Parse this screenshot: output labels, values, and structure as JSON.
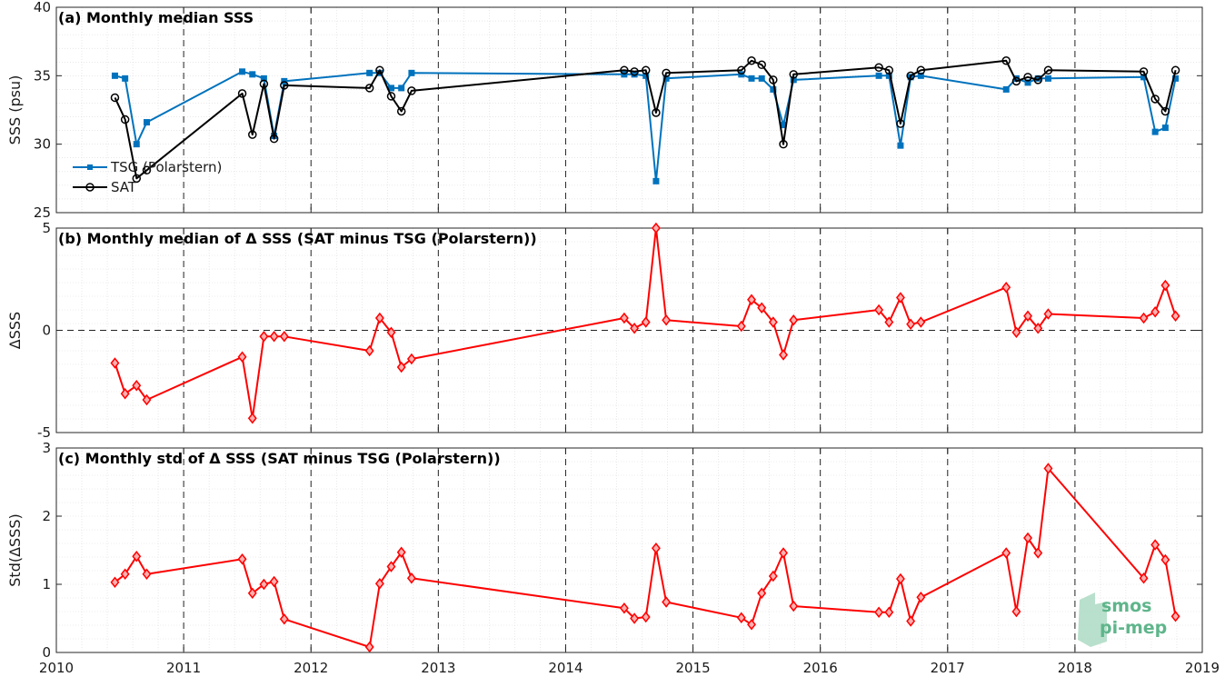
{
  "chart_data": [
    {
      "type": "line",
      "title": "(a) Monthly median SSS",
      "ylabel": "SSS (psu)",
      "ylim": [
        25,
        40
      ],
      "yticks": [
        25,
        30,
        35,
        40
      ],
      "xlim": [
        2010,
        2019
      ],
      "xticks": [
        2010,
        2011,
        2012,
        2013,
        2014,
        2015,
        2016,
        2017,
        2018,
        2019
      ],
      "grid": "dashed yearly lines, dotted minor grid",
      "legend": "left",
      "series": [
        {
          "name": "TSG (Polarstern)",
          "color": "#0072BD",
          "marker": "square",
          "x": [
            2010.46,
            2010.54,
            2010.63,
            2010.71,
            2011.46,
            2011.54,
            2011.63,
            2011.71,
            2011.79,
            2012.46,
            2012.54,
            2012.63,
            2012.71,
            2012.79,
            2014.46,
            2014.54,
            2014.63,
            2014.71,
            2014.79,
            2015.38,
            2015.46,
            2015.54,
            2015.63,
            2015.71,
            2015.79,
            2016.46,
            2016.54,
            2016.63,
            2016.71,
            2016.79,
            2017.46,
            2017.54,
            2017.63,
            2017.71,
            2017.79,
            2018.54,
            2018.63,
            2018.71,
            2018.79
          ],
          "values": [
            35.0,
            34.8,
            30.0,
            31.6,
            35.3,
            35.1,
            34.8,
            30.6,
            34.6,
            35.2,
            35.2,
            34.1,
            34.1,
            35.2,
            35.1,
            35.1,
            35.0,
            27.3,
            34.8,
            35.1,
            34.8,
            34.8,
            34.0,
            31.4,
            34.7,
            35.0,
            35.0,
            29.9,
            34.9,
            35.0,
            34.0,
            34.8,
            34.5,
            34.8,
            34.8,
            34.9,
            30.9,
            31.2,
            34.8
          ]
        },
        {
          "name": "SAT",
          "color": "#000000",
          "marker": "circle",
          "x": [
            2010.46,
            2010.54,
            2010.63,
            2010.71,
            2011.46,
            2011.54,
            2011.63,
            2011.71,
            2011.79,
            2012.46,
            2012.54,
            2012.63,
            2012.71,
            2012.79,
            2014.46,
            2014.54,
            2014.63,
            2014.71,
            2014.79,
            2015.38,
            2015.46,
            2015.54,
            2015.63,
            2015.71,
            2015.79,
            2016.46,
            2016.54,
            2016.63,
            2016.71,
            2016.79,
            2017.46,
            2017.54,
            2017.63,
            2017.71,
            2017.79,
            2018.54,
            2018.63,
            2018.71,
            2018.79
          ],
          "values": [
            33.4,
            31.8,
            27.5,
            28.1,
            33.7,
            30.7,
            34.4,
            30.4,
            34.3,
            34.1,
            35.4,
            33.5,
            32.4,
            33.9,
            35.4,
            35.3,
            35.4,
            32.3,
            35.2,
            35.4,
            36.1,
            35.8,
            34.7,
            30.0,
            35.1,
            35.6,
            35.4,
            31.5,
            35.0,
            35.4,
            36.1,
            34.6,
            34.9,
            34.7,
            35.4,
            35.3,
            33.3,
            32.4,
            35.4
          ]
        }
      ]
    },
    {
      "type": "line",
      "title": "(b) Monthly median of Δ SSS (SAT minus TSG (Polarstern))",
      "ylabel": "ΔSSS",
      "ylim": [
        -5,
        5
      ],
      "yticks": [
        -5,
        0,
        5
      ],
      "xlim": [
        2010,
        2019
      ],
      "xticks": [
        2010,
        2011,
        2012,
        2013,
        2014,
        2015,
        2016,
        2017,
        2018,
        2019
      ],
      "grid": "dashed zero line and yearly lines, dotted minor grid",
      "series": [
        {
          "color": "#ff0000",
          "marker": "diamond",
          "x": [
            2010.46,
            2010.54,
            2010.63,
            2010.71,
            2011.46,
            2011.54,
            2011.63,
            2011.71,
            2011.79,
            2012.46,
            2012.54,
            2012.63,
            2012.71,
            2012.79,
            2014.46,
            2014.54,
            2014.63,
            2014.71,
            2014.79,
            2015.38,
            2015.46,
            2015.54,
            2015.63,
            2015.71,
            2015.79,
            2016.46,
            2016.54,
            2016.63,
            2016.71,
            2016.79,
            2017.46,
            2017.54,
            2017.63,
            2017.71,
            2017.79,
            2018.54,
            2018.63,
            2018.71,
            2018.79
          ],
          "values": [
            -1.6,
            -3.1,
            -2.7,
            -3.4,
            -1.3,
            -4.3,
            -0.3,
            -0.3,
            -0.3,
            -1.0,
            0.6,
            -0.1,
            -1.8,
            -1.4,
            0.6,
            0.1,
            0.4,
            5.0,
            0.5,
            0.2,
            1.5,
            1.1,
            0.4,
            -1.2,
            0.5,
            1.0,
            0.4,
            1.6,
            0.3,
            0.4,
            2.1,
            -0.1,
            0.7,
            0.1,
            0.8,
            0.6,
            0.9,
            2.2,
            0.7
          ]
        }
      ]
    },
    {
      "type": "line",
      "title": "(c) Monthly std of Δ SSS (SAT minus TSG (Polarstern))",
      "ylabel": "Std(ΔSSS)",
      "ylim": [
        0,
        3
      ],
      "yticks": [
        0,
        1,
        2,
        3
      ],
      "xlim": [
        2010,
        2019
      ],
      "xticks": [
        2010,
        2011,
        2012,
        2013,
        2014,
        2015,
        2016,
        2017,
        2018,
        2019
      ],
      "grid": "dashed yearly lines, dotted minor grid",
      "series": [
        {
          "color": "#ff0000",
          "marker": "diamond",
          "x": [
            2010.46,
            2010.54,
            2010.63,
            2010.71,
            2011.46,
            2011.54,
            2011.63,
            2011.71,
            2011.79,
            2012.46,
            2012.54,
            2012.63,
            2012.71,
            2012.79,
            2014.46,
            2014.54,
            2014.63,
            2014.71,
            2014.79,
            2015.38,
            2015.46,
            2015.54,
            2015.63,
            2015.71,
            2015.79,
            2016.46,
            2016.54,
            2016.63,
            2016.71,
            2016.79,
            2017.46,
            2017.54,
            2017.63,
            2017.71,
            2017.79,
            2018.54,
            2018.63,
            2018.71,
            2018.79
          ],
          "values": [
            1.03,
            1.15,
            1.41,
            1.15,
            1.37,
            0.87,
            1.0,
            1.04,
            0.49,
            0.08,
            1.01,
            1.26,
            1.47,
            1.09,
            0.65,
            0.5,
            0.52,
            1.53,
            0.74,
            0.51,
            0.41,
            0.87,
            1.12,
            1.46,
            0.68,
            0.59,
            0.59,
            1.08,
            0.46,
            0.81,
            1.46,
            0.6,
            1.68,
            1.46,
            2.7,
            1.09,
            1.58,
            1.36,
            0.53
          ]
        }
      ]
    }
  ],
  "logo": {
    "line1": "smos",
    "line2": "pi-mep"
  }
}
